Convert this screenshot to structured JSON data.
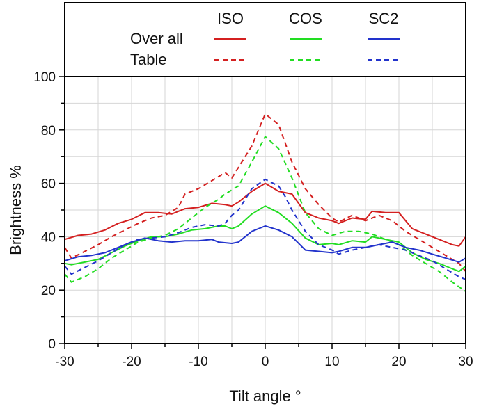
{
  "chart_data": {
    "type": "line",
    "title": "",
    "xlabel": "Tilt angle °",
    "ylabel": "Brightness %",
    "xlim": [
      -30,
      30
    ],
    "ylim": [
      0,
      100
    ],
    "x_ticks": [
      -30,
      -20,
      -10,
      0,
      10,
      20,
      30
    ],
    "y_ticks": [
      0,
      20,
      40,
      60,
      80,
      100
    ],
    "grid": true,
    "legend": {
      "placement": "top",
      "columns": [
        "ISO",
        "COS",
        "SC2"
      ],
      "rows": [
        "Over all",
        "Table"
      ]
    },
    "series": [
      {
        "name": "ISO Over all",
        "group": "ISO",
        "style": "solid",
        "color": "#d42020",
        "points": [
          [
            -30,
            39
          ],
          [
            -28,
            40.5
          ],
          [
            -26,
            41
          ],
          [
            -24,
            42.5
          ],
          [
            -22,
            45
          ],
          [
            -20,
            46.5
          ],
          [
            -18,
            49
          ],
          [
            -16,
            49
          ],
          [
            -14,
            48.5
          ],
          [
            -12,
            50.5
          ],
          [
            -10,
            51
          ],
          [
            -8,
            52.5
          ],
          [
            -6,
            52
          ],
          [
            -5,
            51.5
          ],
          [
            -4,
            53
          ],
          [
            -2,
            57
          ],
          [
            0,
            60
          ],
          [
            2,
            57
          ],
          [
            4,
            56
          ],
          [
            6,
            49
          ],
          [
            8,
            47
          ],
          [
            10,
            46
          ],
          [
            11,
            45
          ],
          [
            13,
            47
          ],
          [
            15,
            46.5
          ],
          [
            16,
            49.5
          ],
          [
            18,
            49
          ],
          [
            20,
            49
          ],
          [
            22,
            43
          ],
          [
            24,
            41
          ],
          [
            26,
            39
          ],
          [
            28,
            37
          ],
          [
            29,
            36.5
          ],
          [
            30,
            40
          ]
        ]
      },
      {
        "name": "ISO Table",
        "group": "ISO",
        "style": "dashed",
        "color": "#d42020",
        "points": [
          [
            -30,
            36
          ],
          [
            -29,
            32
          ],
          [
            -27,
            34.5
          ],
          [
            -25,
            37
          ],
          [
            -23,
            40
          ],
          [
            -21,
            42.5
          ],
          [
            -19,
            45
          ],
          [
            -17,
            47
          ],
          [
            -15,
            48
          ],
          [
            -13,
            51
          ],
          [
            -12,
            56
          ],
          [
            -10,
            58
          ],
          [
            -8,
            61
          ],
          [
            -6,
            64
          ],
          [
            -5,
            62
          ],
          [
            -4,
            66
          ],
          [
            -2,
            74
          ],
          [
            0,
            86
          ],
          [
            2,
            82
          ],
          [
            3,
            75
          ],
          [
            4,
            68
          ],
          [
            6,
            58
          ],
          [
            8,
            52
          ],
          [
            10,
            47
          ],
          [
            11,
            45.5
          ],
          [
            13,
            48
          ],
          [
            15,
            46
          ],
          [
            17,
            48
          ],
          [
            19,
            46
          ],
          [
            21,
            42
          ],
          [
            23,
            39
          ],
          [
            25,
            36
          ],
          [
            27,
            33
          ],
          [
            29,
            30
          ],
          [
            30,
            27
          ]
        ]
      },
      {
        "name": "COS Over all",
        "group": "COS",
        "style": "solid",
        "color": "#22dd22",
        "points": [
          [
            -30,
            30
          ],
          [
            -29,
            29.5
          ],
          [
            -27,
            30.5
          ],
          [
            -25,
            31.5
          ],
          [
            -23,
            34
          ],
          [
            -21,
            36.5
          ],
          [
            -19,
            38.5
          ],
          [
            -17,
            40
          ],
          [
            -15,
            40
          ],
          [
            -13,
            41
          ],
          [
            -11,
            42.5
          ],
          [
            -9,
            43
          ],
          [
            -7,
            44
          ],
          [
            -6,
            44
          ],
          [
            -5,
            43
          ],
          [
            -4,
            44
          ],
          [
            -2,
            48.5
          ],
          [
            0,
            51.5
          ],
          [
            2,
            49
          ],
          [
            4,
            45
          ],
          [
            6,
            39.5
          ],
          [
            8,
            37
          ],
          [
            10,
            37.5
          ],
          [
            11,
            37
          ],
          [
            13,
            38.5
          ],
          [
            15,
            38
          ],
          [
            16,
            40
          ],
          [
            18,
            39
          ],
          [
            20,
            38
          ],
          [
            22,
            34
          ],
          [
            24,
            31.5
          ],
          [
            26,
            30
          ],
          [
            28,
            28
          ],
          [
            29,
            27
          ],
          [
            30,
            29
          ]
        ]
      },
      {
        "name": "COS Table",
        "group": "COS",
        "style": "dashed",
        "color": "#22dd22",
        "points": [
          [
            -30,
            26
          ],
          [
            -29,
            23
          ],
          [
            -27,
            25
          ],
          [
            -25,
            28
          ],
          [
            -23,
            32
          ],
          [
            -21,
            35
          ],
          [
            -19,
            38
          ],
          [
            -17,
            39.5
          ],
          [
            -15,
            40.5
          ],
          [
            -13,
            43
          ],
          [
            -11,
            47
          ],
          [
            -9,
            51
          ],
          [
            -7,
            54
          ],
          [
            -6,
            56
          ],
          [
            -5,
            57.5
          ],
          [
            -4,
            59
          ],
          [
            -2,
            68
          ],
          [
            0,
            77.5
          ],
          [
            2,
            73
          ],
          [
            4,
            62
          ],
          [
            6,
            49
          ],
          [
            8,
            43
          ],
          [
            10,
            40.5
          ],
          [
            12,
            42
          ],
          [
            14,
            42
          ],
          [
            16,
            41
          ],
          [
            18,
            39
          ],
          [
            20,
            37
          ],
          [
            22,
            33
          ],
          [
            24,
            30
          ],
          [
            26,
            27
          ],
          [
            28,
            23
          ],
          [
            30,
            19.5
          ]
        ]
      },
      {
        "name": "SC2 Over all",
        "group": "SC2",
        "style": "solid",
        "color": "#2233cc",
        "points": [
          [
            -30,
            31
          ],
          [
            -28,
            32.5
          ],
          [
            -26,
            33
          ],
          [
            -24,
            34
          ],
          [
            -22,
            36
          ],
          [
            -20,
            38
          ],
          [
            -18,
            39.5
          ],
          [
            -16,
            38.5
          ],
          [
            -14,
            38
          ],
          [
            -12,
            38.5
          ],
          [
            -10,
            38.5
          ],
          [
            -8,
            39
          ],
          [
            -7,
            38
          ],
          [
            -5,
            37.5
          ],
          [
            -4,
            38
          ],
          [
            -2,
            42
          ],
          [
            0,
            44
          ],
          [
            2,
            42.5
          ],
          [
            4,
            40
          ],
          [
            6,
            35
          ],
          [
            8,
            34.5
          ],
          [
            10,
            34
          ],
          [
            11,
            34.5
          ],
          [
            13,
            36
          ],
          [
            15,
            36
          ],
          [
            17,
            37
          ],
          [
            19,
            38
          ],
          [
            21,
            36
          ],
          [
            23,
            35
          ],
          [
            25,
            33.5
          ],
          [
            27,
            32
          ],
          [
            29,
            30.5
          ],
          [
            30,
            32
          ]
        ]
      },
      {
        "name": "SC2 Table",
        "group": "SC2",
        "style": "dashed",
        "color": "#2233cc",
        "points": [
          [
            -30,
            29
          ],
          [
            -29,
            26
          ],
          [
            -27,
            28.5
          ],
          [
            -25,
            31
          ],
          [
            -23,
            34
          ],
          [
            -21,
            37
          ],
          [
            -19,
            39
          ],
          [
            -17,
            39.5
          ],
          [
            -15,
            40
          ],
          [
            -13,
            41.5
          ],
          [
            -11,
            43.5
          ],
          [
            -9,
            44.5
          ],
          [
            -7,
            44
          ],
          [
            -6,
            45
          ],
          [
            -5,
            48
          ],
          [
            -4,
            50
          ],
          [
            -2,
            58
          ],
          [
            0,
            61.5
          ],
          [
            2,
            59
          ],
          [
            3,
            55
          ],
          [
            4,
            50
          ],
          [
            6,
            42
          ],
          [
            8,
            37
          ],
          [
            10,
            35
          ],
          [
            11,
            33.5
          ],
          [
            13,
            35
          ],
          [
            15,
            36
          ],
          [
            17,
            37
          ],
          [
            19,
            36
          ],
          [
            21,
            35
          ],
          [
            23,
            33
          ],
          [
            25,
            31
          ],
          [
            27,
            28
          ],
          [
            29,
            25
          ],
          [
            30,
            24
          ]
        ]
      }
    ]
  }
}
